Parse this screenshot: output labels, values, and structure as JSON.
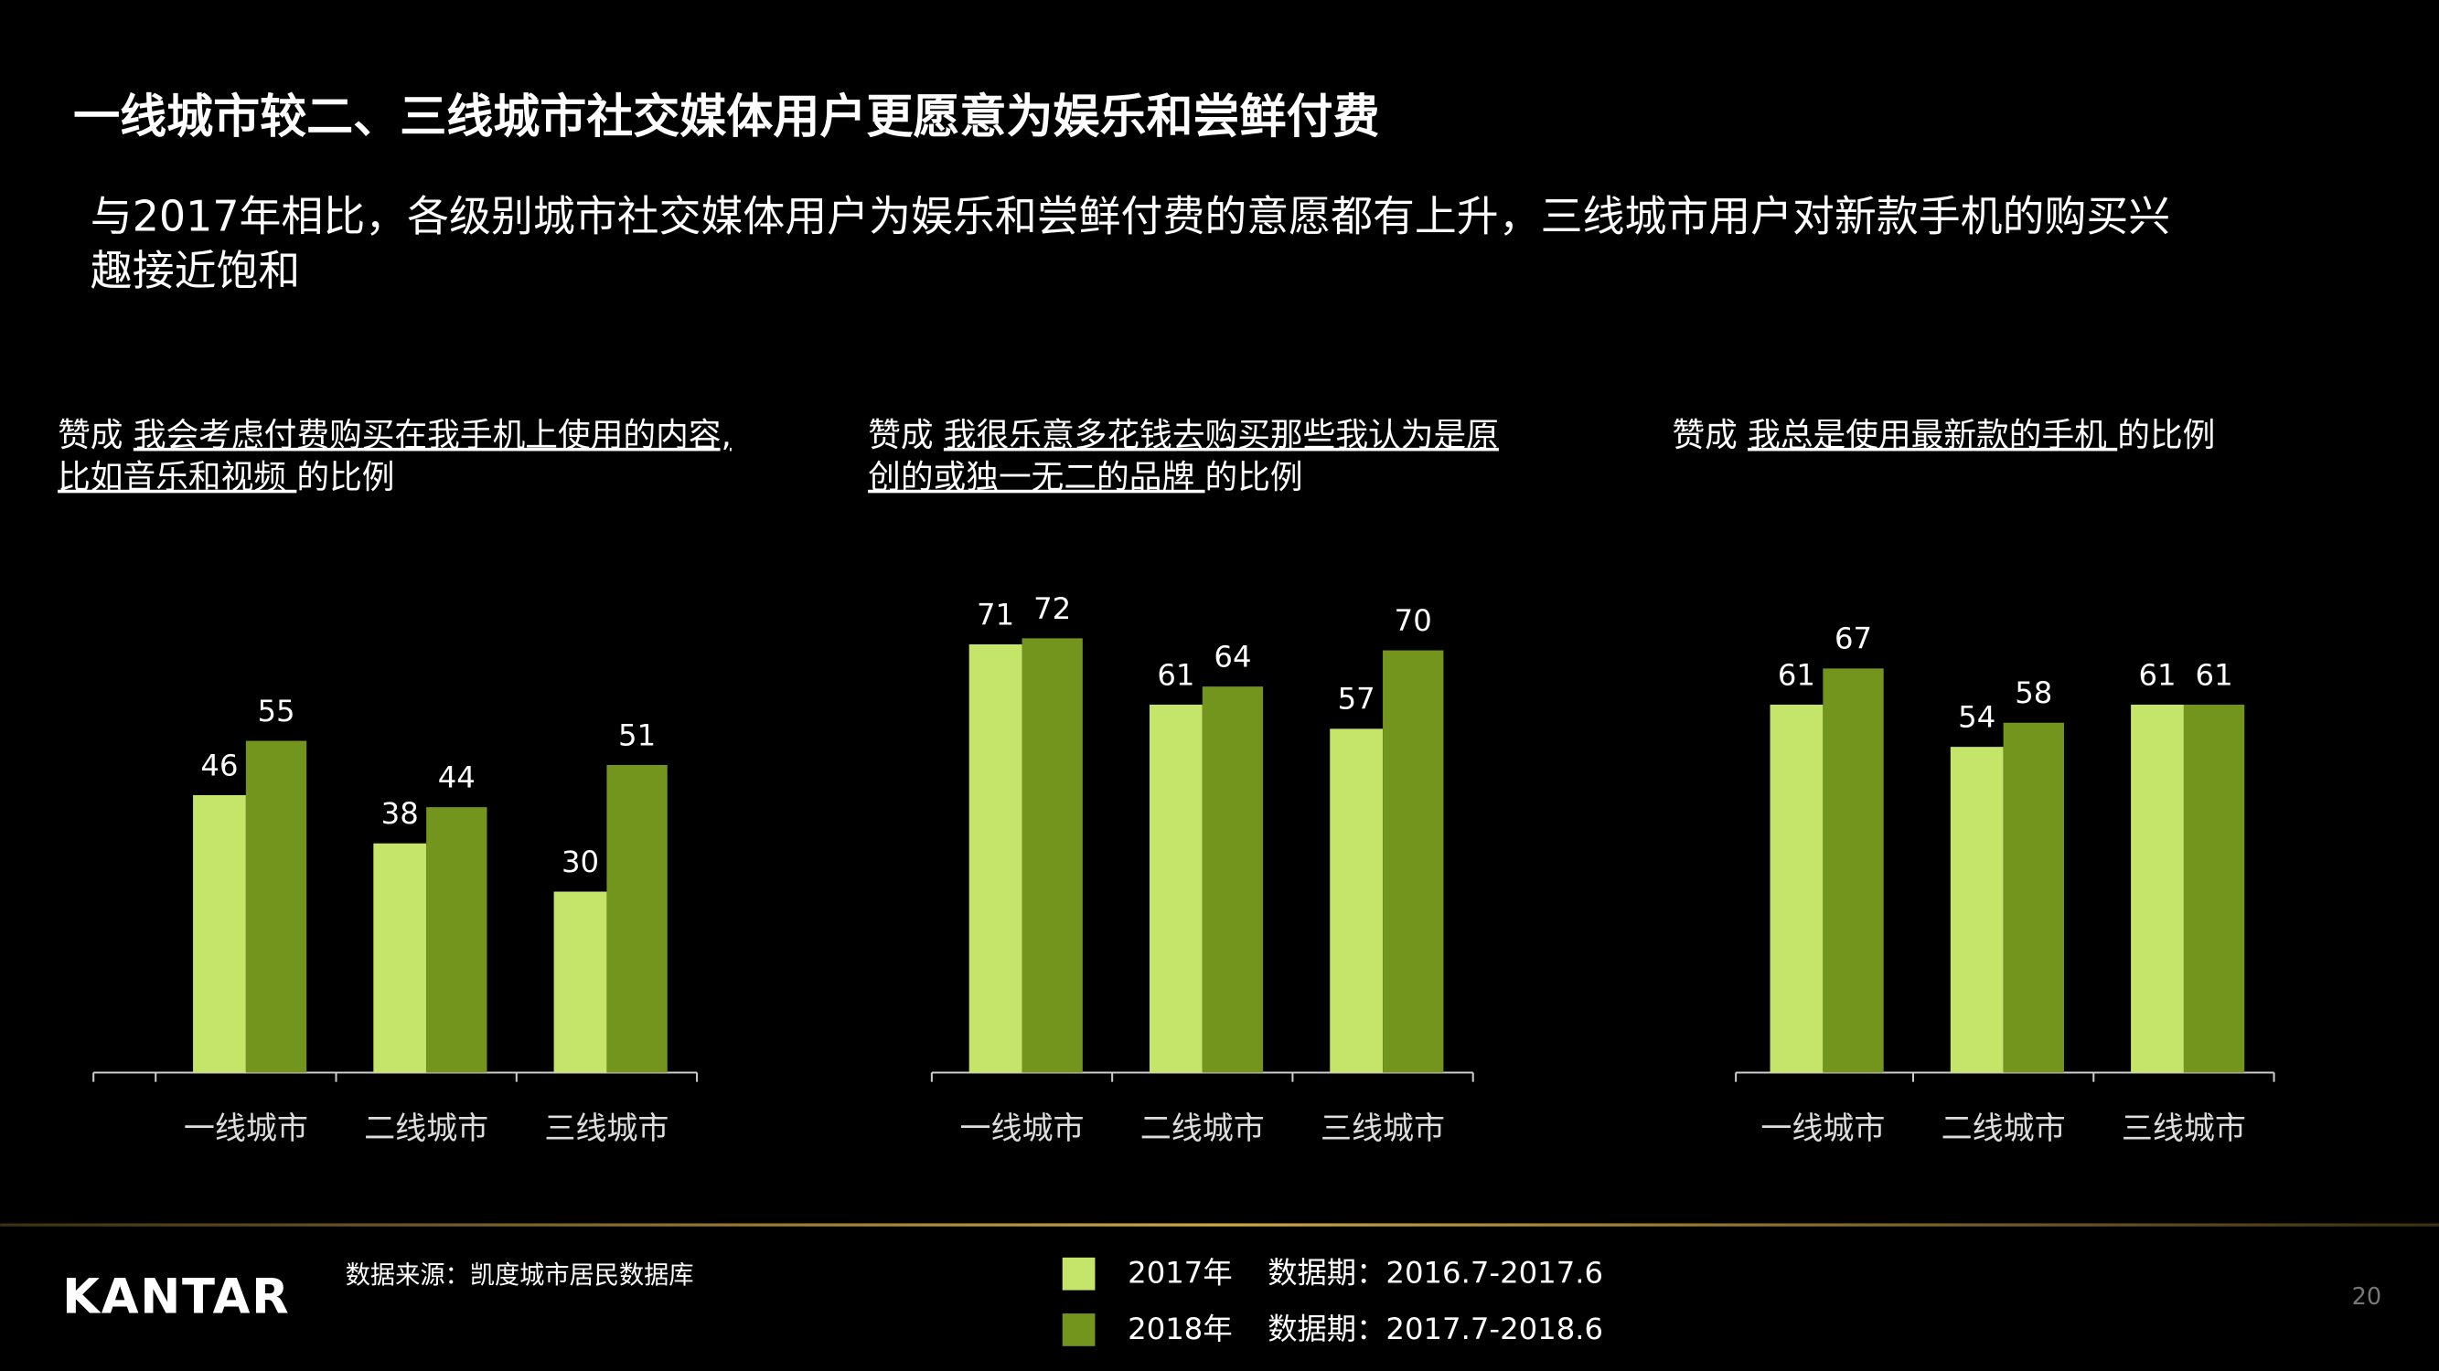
{
  "header": {
    "title": "一线城市较二、三线城市社交媒体用户更愿意为娱乐和尝鲜付费",
    "subtitle": [
      "与2017年相比，各级别城市社交媒体用户为娱乐和尝鲜付费的意愿都有上升，三线城市用户对新款手机的购买兴",
      "趣接近饱和"
    ]
  },
  "chart_data": [
    {
      "type": "bar",
      "title": [
        [
          {
            "text": "赞成 "
          },
          {
            "text": "我会考虑付费购买在我手机上使用的内容,",
            "underline": true
          }
        ],
        [
          {
            "text": "比如音乐和视频 ",
            "underline": true
          },
          {
            "text": "的比例"
          }
        ]
      ],
      "categories": [
        "一线城市",
        "二线城市",
        "三线城市"
      ],
      "series": [
        {
          "name": "2017年",
          "period": "数据期：2016.7-2017.6",
          "color": "#c5e56a",
          "values": [
            46,
            38,
            30
          ]
        },
        {
          "name": "2018年",
          "period": "数据期：2017.7-2018.6",
          "color": "#74951d",
          "values": [
            55,
            44,
            51
          ]
        }
      ]
    },
    {
      "type": "bar",
      "title": [
        [
          {
            "text": "赞成 "
          },
          {
            "text": "我很乐意多花钱去购买那些我认为是原",
            "underline": true
          }
        ],
        [
          {
            "text": "创的或独一无二的品牌 ",
            "underline": true
          },
          {
            "text": "的比例"
          }
        ]
      ],
      "categories": [
        "一线城市",
        "二线城市",
        "三线城市"
      ],
      "series": [
        {
          "color": "#c5e56a",
          "values": [
            71,
            61,
            57
          ]
        },
        {
          "color": "#74951d",
          "values": [
            72,
            64,
            70
          ]
        }
      ]
    },
    {
      "type": "bar",
      "title": [
        [
          {
            "text": "赞成 "
          },
          {
            "text": "我总是使用最新款的手机 ",
            "underline": true
          },
          {
            "text": "的比例"
          }
        ]
      ],
      "categories": [
        "一线城市",
        "二线城市",
        "三线城市"
      ],
      "series": [
        {
          "color": "#c5e56a",
          "values": [
            61,
            54,
            61
          ]
        },
        {
          "color": "#74951d",
          "values": [
            67,
            58,
            61
          ]
        }
      ]
    }
  ],
  "footer": {
    "logo": "KANTAR",
    "source": "数据来源：凯度城市居民数据库",
    "page": "20"
  }
}
